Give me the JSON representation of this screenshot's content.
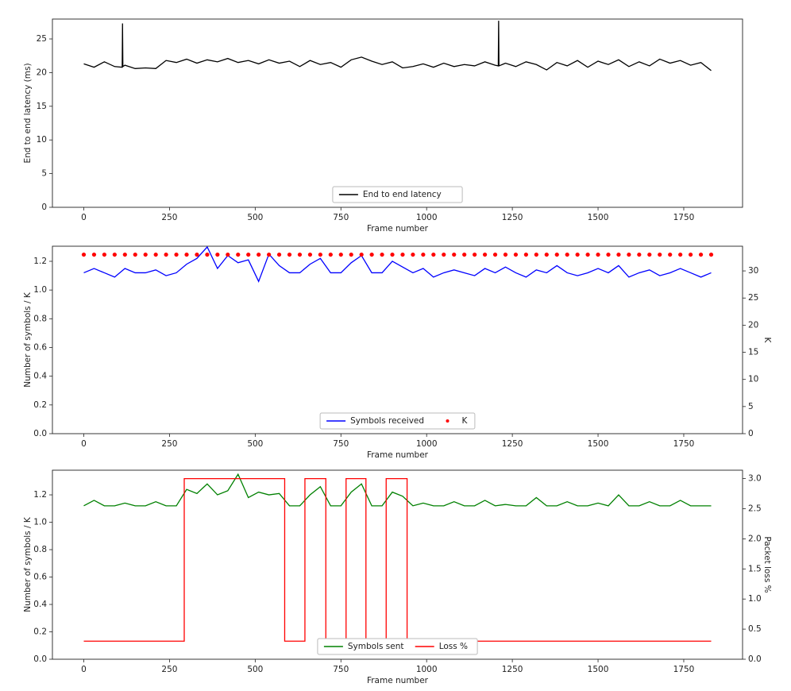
{
  "chart_data": [
    {
      "type": "line",
      "xlabel": "Frame number",
      "ylabel": "End to end latency (ms)",
      "xlim": [
        -91.5,
        1921.5
      ],
      "xticks": [
        0,
        250,
        500,
        750,
        1000,
        1250,
        1500,
        1750
      ],
      "ylim": [
        0,
        27.95
      ],
      "yticks": [
        0,
        5,
        10,
        15,
        20,
        25
      ],
      "legend": "lower center",
      "x": [
        0,
        30,
        60,
        90,
        112,
        113,
        114,
        120,
        150,
        180,
        210,
        240,
        270,
        300,
        330,
        360,
        390,
        420,
        450,
        480,
        510,
        540,
        570,
        600,
        630,
        660,
        690,
        720,
        750,
        780,
        810,
        840,
        870,
        900,
        930,
        960,
        990,
        1020,
        1050,
        1080,
        1110,
        1140,
        1170,
        1200,
        1209,
        1210,
        1211,
        1230,
        1260,
        1290,
        1320,
        1350,
        1380,
        1410,
        1440,
        1470,
        1500,
        1530,
        1560,
        1590,
        1620,
        1650,
        1680,
        1710,
        1740,
        1770,
        1800,
        1830
      ],
      "series": [
        {
          "name": "End to end latency",
          "color": "#000000",
          "type": "line",
          "values": [
            21.3,
            20.8,
            21.6,
            20.9,
            20.8,
            27.3,
            20.9,
            21.1,
            20.6,
            20.7,
            20.6,
            21.8,
            21.5,
            22.0,
            21.4,
            21.9,
            21.6,
            22.1,
            21.5,
            21.8,
            21.3,
            21.9,
            21.4,
            21.7,
            20.9,
            21.8,
            21.2,
            21.5,
            20.8,
            21.9,
            22.3,
            21.7,
            21.2,
            21.6,
            20.7,
            20.9,
            21.3,
            20.8,
            21.4,
            20.9,
            21.2,
            21.0,
            21.6,
            21.1,
            21.0,
            27.7,
            21.0,
            21.4,
            20.9,
            21.6,
            21.2,
            20.4,
            21.5,
            21.0,
            21.8,
            20.8,
            21.7,
            21.2,
            21.9,
            20.9,
            21.6,
            21.0,
            22.0,
            21.4,
            21.8,
            21.1,
            21.5,
            20.3
          ]
        }
      ]
    },
    {
      "type": "line",
      "xlabel": "Frame number",
      "ylabel": "Number of symbols / K",
      "y2label": "K",
      "xlim": [
        -91.5,
        1921.5
      ],
      "xticks": [
        0,
        250,
        500,
        750,
        1000,
        1250,
        1500,
        1750
      ],
      "ylim": [
        0,
        1.305
      ],
      "yticks": [
        {
          "value": 0,
          "label": "0.0"
        },
        0.2,
        0.4,
        0.6,
        0.8,
        {
          "value": 1,
          "label": "1.0"
        },
        1.2
      ],
      "y2lim": [
        0,
        34.55
      ],
      "y2ticks": [
        0,
        5,
        10,
        15,
        20,
        25,
        30
      ],
      "legend": "lower center",
      "x": [
        0,
        30,
        60,
        90,
        120,
        150,
        180,
        210,
        240,
        270,
        300,
        330,
        360,
        390,
        420,
        450,
        480,
        510,
        540,
        570,
        600,
        630,
        660,
        690,
        720,
        750,
        780,
        810,
        840,
        870,
        900,
        930,
        960,
        990,
        1020,
        1050,
        1080,
        1110,
        1140,
        1170,
        1200,
        1230,
        1260,
        1290,
        1320,
        1350,
        1380,
        1410,
        1440,
        1470,
        1500,
        1530,
        1560,
        1590,
        1620,
        1650,
        1680,
        1710,
        1740,
        1770,
        1800,
        1830
      ],
      "series": [
        {
          "name": "Symbols received",
          "color": "#0000ff",
          "type": "line",
          "values": [
            1.12,
            1.15,
            1.12,
            1.09,
            1.15,
            1.12,
            1.12,
            1.14,
            1.1,
            1.12,
            1.18,
            1.22,
            1.3,
            1.15,
            1.24,
            1.19,
            1.21,
            1.06,
            1.25,
            1.17,
            1.12,
            1.12,
            1.18,
            1.22,
            1.12,
            1.12,
            1.19,
            1.24,
            1.12,
            1.12,
            1.2,
            1.16,
            1.12,
            1.15,
            1.09,
            1.12,
            1.14,
            1.12,
            1.1,
            1.15,
            1.12,
            1.16,
            1.12,
            1.09,
            1.14,
            1.12,
            1.17,
            1.12,
            1.1,
            1.12,
            1.15,
            1.12,
            1.17,
            1.09,
            1.12,
            1.14,
            1.1,
            1.12,
            1.15,
            1.12,
            1.09,
            1.12
          ]
        },
        {
          "name": "K",
          "color": "#ff0000",
          "type": "scatter",
          "axis": "y2",
          "values": [
            33,
            33,
            33,
            33,
            33,
            33,
            33,
            33,
            33,
            33,
            33,
            33,
            33,
            33,
            33,
            33,
            33,
            33,
            33,
            33,
            33,
            33,
            33,
            33,
            33,
            33,
            33,
            33,
            33,
            33,
            33,
            33,
            33,
            33,
            33,
            33,
            33,
            33,
            33,
            33,
            33,
            33,
            33,
            33,
            33,
            33,
            33,
            33,
            33,
            33,
            33,
            33,
            33,
            33,
            33,
            33,
            33,
            33,
            33,
            33,
            33,
            33
          ]
        }
      ]
    },
    {
      "type": "line",
      "xlabel": "Frame number",
      "ylabel": "Number of symbols / K",
      "y2label": "Packet loss %",
      "xlim": [
        -91.5,
        1921.5
      ],
      "xticks": [
        0,
        250,
        500,
        750,
        1000,
        1250,
        1500,
        1750
      ],
      "ylim": [
        0,
        1.38
      ],
      "yticks": [
        {
          "value": 0,
          "label": "0.0"
        },
        0.2,
        0.4,
        0.6,
        0.8,
        {
          "value": 1,
          "label": "1.0"
        },
        1.2
      ],
      "y2lim": [
        0,
        3.14
      ],
      "y2ticks": [
        {
          "value": 0,
          "label": "0.0"
        },
        0.5,
        {
          "value": 1,
          "label": "1.0"
        },
        1.5,
        {
          "value": 2,
          "label": "2.0"
        },
        2.5,
        {
          "value": 3,
          "label": "3.0"
        }
      ],
      "legend": "lower center",
      "x": [
        0,
        30,
        60,
        90,
        120,
        150,
        180,
        210,
        240,
        270,
        300,
        330,
        360,
        390,
        420,
        450,
        480,
        510,
        540,
        570,
        600,
        630,
        660,
        690,
        720,
        750,
        780,
        810,
        840,
        870,
        900,
        930,
        960,
        990,
        1020,
        1050,
        1080,
        1110,
        1140,
        1170,
        1200,
        1230,
        1260,
        1290,
        1320,
        1350,
        1380,
        1410,
        1440,
        1470,
        1500,
        1530,
        1560,
        1590,
        1620,
        1650,
        1680,
        1710,
        1740,
        1770,
        1800,
        1830
      ],
      "series": [
        {
          "name": "Symbols sent",
          "color": "#008000",
          "type": "line",
          "values": [
            1.12,
            1.16,
            1.12,
            1.12,
            1.14,
            1.12,
            1.12,
            1.15,
            1.12,
            1.12,
            1.24,
            1.21,
            1.28,
            1.2,
            1.23,
            1.35,
            1.18,
            1.22,
            1.2,
            1.21,
            1.12,
            1.12,
            1.2,
            1.26,
            1.12,
            1.12,
            1.22,
            1.28,
            1.12,
            1.12,
            1.22,
            1.19,
            1.12,
            1.14,
            1.12,
            1.12,
            1.15,
            1.12,
            1.12,
            1.16,
            1.12,
            1.13,
            1.12,
            1.12,
            1.18,
            1.12,
            1.12,
            1.15,
            1.12,
            1.12,
            1.14,
            1.12,
            1.2,
            1.12,
            1.12,
            1.15,
            1.12,
            1.12,
            1.16,
            1.12,
            1.12,
            1.12
          ]
        },
        {
          "name": "Loss %",
          "color": "#ff0000",
          "type": "line",
          "axis": "y2",
          "x": [
            0,
            293,
            293,
            586,
            586,
            645,
            645,
            706,
            706,
            765,
            765,
            823,
            823,
            882,
            882,
            943,
            943,
            1830
          ],
          "values": [
            0.3,
            0.3,
            3.0,
            3.0,
            0.3,
            0.3,
            3.0,
            3.0,
            0.3,
            0.3,
            3.0,
            3.0,
            0.3,
            0.3,
            3.0,
            3.0,
            0.3,
            0.3
          ]
        }
      ]
    }
  ]
}
